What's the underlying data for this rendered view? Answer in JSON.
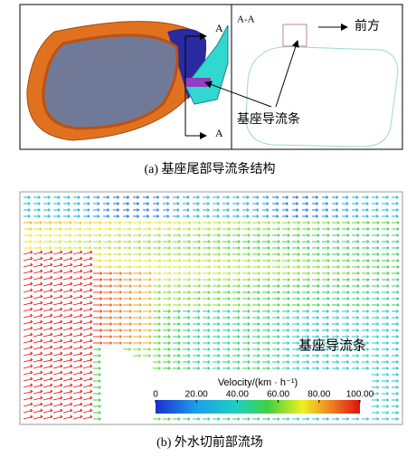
{
  "panel_a": {
    "section_mark_top": "A",
    "section_mark_bottom": "A",
    "section_title": "A-A",
    "direction_label": "前方",
    "callout": "基座导流条",
    "caption": "(a)  基座尾部导流条结构"
  },
  "panel_b": {
    "callout": "基座导流条",
    "caption": "(b)  外水切前部流场",
    "colorbar": {
      "title": "Velocity/(km · h⁻¹)",
      "lim": [
        0,
        100
      ],
      "ticks": [
        0,
        {
          "value": 20,
          "label": "20.00"
        },
        {
          "value": 40,
          "label": "40.00"
        },
        {
          "value": 60,
          "label": "60.00"
        },
        {
          "value": 80,
          "label": "80.00"
        },
        {
          "value": 100,
          "label": "100.00"
        }
      ]
    }
  }
}
